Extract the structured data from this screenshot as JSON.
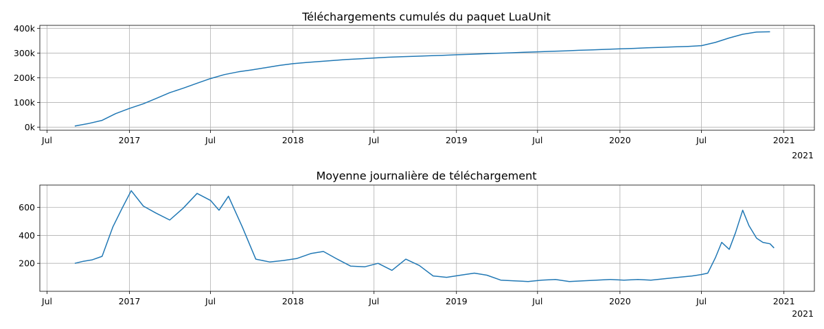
{
  "chart_data": [
    {
      "type": "line",
      "title": "Téléchargements cumulés du paquet LuaUnit",
      "xlabel": "",
      "ylabel": "",
      "xlim": [
        "2016-06-15",
        "2021-03-10"
      ],
      "ylim": [
        -12000,
        412000
      ],
      "grid": true,
      "x_ticks": [
        {
          "date": "2016-07-01",
          "label": "Jul"
        },
        {
          "date": "2017-01-01",
          "label": "2017"
        },
        {
          "date": "2017-07-01",
          "label": "Jul"
        },
        {
          "date": "2018-01-01",
          "label": "2018"
        },
        {
          "date": "2018-07-01",
          "label": "Jul"
        },
        {
          "date": "2019-01-01",
          "label": "2019"
        },
        {
          "date": "2019-07-01",
          "label": "Jul"
        },
        {
          "date": "2020-01-01",
          "label": "2020"
        },
        {
          "date": "2020-07-01",
          "label": "Jul"
        },
        {
          "date": "2021-01-01",
          "label": "2021"
        }
      ],
      "x_offset_label": "2021",
      "y_ticks": [
        {
          "value": 0,
          "label": "0k"
        },
        {
          "value": 100000,
          "label": "100k"
        },
        {
          "value": 200000,
          "label": "200k"
        },
        {
          "value": 300000,
          "label": "300k"
        },
        {
          "value": 400000,
          "label": "400k"
        }
      ],
      "series": [
        {
          "color": "#1f77b4",
          "x": [
            "2016-09-01",
            "2016-10-01",
            "2016-11-01",
            "2016-12-01",
            "2017-01-01",
            "2017-02-01",
            "2017-03-01",
            "2017-04-01",
            "2017-05-01",
            "2017-06-01",
            "2017-07-01",
            "2017-08-01",
            "2017-09-01",
            "2017-10-01",
            "2017-11-01",
            "2017-12-01",
            "2018-01-01",
            "2018-02-01",
            "2018-03-01",
            "2018-04-01",
            "2018-05-01",
            "2018-06-01",
            "2018-07-01",
            "2018-08-01",
            "2018-09-01",
            "2018-10-01",
            "2018-11-01",
            "2018-12-01",
            "2019-01-01",
            "2019-02-01",
            "2019-03-01",
            "2019-04-01",
            "2019-05-01",
            "2019-06-01",
            "2019-07-01",
            "2019-08-01",
            "2019-09-01",
            "2019-10-01",
            "2019-11-01",
            "2019-12-01",
            "2020-01-01",
            "2020-02-01",
            "2020-03-01",
            "2020-04-01",
            "2020-05-01",
            "2020-06-01",
            "2020-07-01",
            "2020-08-01",
            "2020-09-01",
            "2020-10-01",
            "2020-11-01",
            "2020-12-01"
          ],
          "y": [
            5000,
            15000,
            28000,
            55000,
            76000,
            95000,
            116000,
            140000,
            158000,
            178000,
            197000,
            213000,
            224000,
            232000,
            241000,
            250000,
            257000,
            262000,
            266000,
            270000,
            274000,
            277000,
            280000,
            283000,
            285000,
            287000,
            289000,
            291000,
            293000,
            295000,
            297000,
            299000,
            301000,
            303000,
            305000,
            307000,
            309000,
            311000,
            313000,
            315000,
            317000,
            319000,
            321000,
            323000,
            325000,
            327000,
            330000,
            343000,
            361000,
            376000,
            385000,
            386000
          ]
        }
      ]
    },
    {
      "type": "line",
      "title": "Moyenne journalière de téléchargement",
      "xlabel": "",
      "ylabel": "",
      "xlim": [
        "2016-06-15",
        "2021-03-10"
      ],
      "ylim": [
        0,
        760
      ],
      "grid": true,
      "x_ticks": [
        {
          "date": "2016-07-01",
          "label": "Jul"
        },
        {
          "date": "2017-01-01",
          "label": "2017"
        },
        {
          "date": "2017-07-01",
          "label": "Jul"
        },
        {
          "date": "2018-01-01",
          "label": "2018"
        },
        {
          "date": "2018-07-01",
          "label": "Jul"
        },
        {
          "date": "2019-01-01",
          "label": "2019"
        },
        {
          "date": "2019-07-01",
          "label": "Jul"
        },
        {
          "date": "2020-01-01",
          "label": "2020"
        },
        {
          "date": "2020-07-01",
          "label": "Jul"
        },
        {
          "date": "2021-01-01",
          "label": "2021"
        }
      ],
      "x_offset_label": "2021",
      "y_ticks": [
        {
          "value": 200,
          "label": "200"
        },
        {
          "value": 400,
          "label": "400"
        },
        {
          "value": 600,
          "label": "600"
        }
      ],
      "series": [
        {
          "color": "#1f77b4",
          "x": [
            "2016-09-01",
            "2016-09-20",
            "2016-10-10",
            "2016-11-01",
            "2016-11-10",
            "2016-11-25",
            "2016-12-15",
            "2017-01-05",
            "2017-02-01",
            "2017-03-01",
            "2017-04-01",
            "2017-05-01",
            "2017-06-01",
            "2017-07-01",
            "2017-07-20",
            "2017-08-10",
            "2017-09-10",
            "2017-10-10",
            "2017-11-10",
            "2017-12-10",
            "2018-01-10",
            "2018-02-10",
            "2018-03-10",
            "2018-04-10",
            "2018-05-10",
            "2018-06-10",
            "2018-07-10",
            "2018-08-10",
            "2018-09-10",
            "2018-10-10",
            "2018-11-10",
            "2018-12-10",
            "2019-01-10",
            "2019-02-10",
            "2019-03-10",
            "2019-04-10",
            "2019-05-10",
            "2019-06-10",
            "2019-07-10",
            "2019-08-10",
            "2019-09-10",
            "2019-10-10",
            "2019-11-10",
            "2019-12-10",
            "2020-01-10",
            "2020-02-10",
            "2020-03-10",
            "2020-04-10",
            "2020-05-10",
            "2020-06-10",
            "2020-07-01",
            "2020-07-15",
            "2020-08-01",
            "2020-08-15",
            "2020-09-01",
            "2020-09-15",
            "2020-10-01",
            "2020-10-15",
            "2020-11-01",
            "2020-11-15",
            "2020-12-01",
            "2020-12-10"
          ],
          "y": [
            200,
            215,
            225,
            250,
            330,
            460,
            590,
            720,
            610,
            560,
            510,
            595,
            700,
            650,
            580,
            680,
            460,
            230,
            210,
            220,
            235,
            270,
            285,
            230,
            180,
            175,
            200,
            150,
            230,
            185,
            110,
            100,
            115,
            130,
            115,
            80,
            75,
            70,
            80,
            85,
            70,
            75,
            80,
            85,
            80,
            85,
            80,
            90,
            100,
            110,
            120,
            130,
            240,
            350,
            300,
            420,
            580,
            470,
            380,
            350,
            340,
            310
          ]
        }
      ]
    }
  ]
}
